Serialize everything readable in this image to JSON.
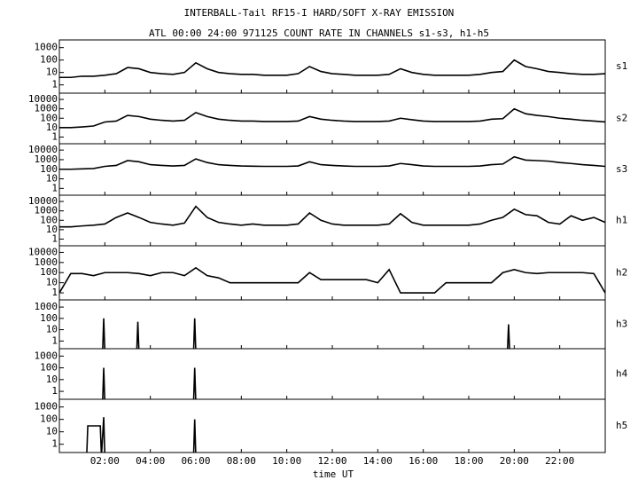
{
  "chart_data": [
    {
      "type": "line",
      "title": "INTERBALL-Tail RF15-I HARD/SOFT X-RAY EMISSION",
      "subtitle": "ATL 00:00 24:00 971125  COUNT RATE IN CHANNELS s1-s3, h1-h5",
      "log": true,
      "xlim": [
        0,
        24
      ],
      "ylim": [
        0.3,
        3000
      ],
      "yticks": [
        1000,
        100,
        10,
        1
      ],
      "x": [
        0,
        0.5,
        1,
        1.5,
        2,
        2.5,
        3,
        3.5,
        4,
        4.5,
        5,
        5.5,
        6,
        6.5,
        7,
        7.5,
        8,
        8.5,
        9,
        9.5,
        10,
        10.5,
        11,
        11.5,
        12,
        12.5,
        13,
        13.5,
        14,
        14.5,
        15,
        15.5,
        16,
        16.5,
        17,
        17.5,
        18,
        18.5,
        19,
        19.5,
        20,
        20.5,
        21,
        21.5,
        22,
        22.5,
        23,
        23.5,
        24
      ],
      "series": [
        {
          "name": "s1",
          "color": "#000000",
          "values": [
            4,
            4,
            5,
            5,
            6,
            8,
            25,
            20,
            10,
            8,
            7,
            10,
            60,
            20,
            10,
            8,
            7,
            7,
            6,
            6,
            6,
            8,
            30,
            12,
            8,
            7,
            6,
            6,
            6,
            7,
            20,
            10,
            7,
            6,
            6,
            6,
            6,
            7,
            10,
            12,
            100,
            30,
            20,
            12,
            10,
            8,
            7,
            7,
            8
          ]
        }
      ]
    },
    {
      "type": "line",
      "log": true,
      "xlim": [
        0,
        24
      ],
      "ylim": [
        0.3,
        30000
      ],
      "yticks": [
        10000,
        1000,
        100,
        10,
        1
      ],
      "x": [
        0,
        0.5,
        1,
        1.5,
        2,
        2.5,
        3,
        3.5,
        4,
        4.5,
        5,
        5.5,
        6,
        6.5,
        7,
        7.5,
        8,
        8.5,
        9,
        9.5,
        10,
        10.5,
        11,
        11.5,
        12,
        12.5,
        13,
        13.5,
        14,
        14.5,
        15,
        15.5,
        16,
        16.5,
        17,
        17.5,
        18,
        18.5,
        19,
        19.5,
        20,
        20.5,
        21,
        21.5,
        22,
        22.5,
        23,
        23.5,
        24
      ],
      "series": [
        {
          "name": "s2",
          "color": "#000000",
          "values": [
            10,
            10,
            12,
            15,
            40,
            50,
            200,
            150,
            80,
            60,
            50,
            60,
            400,
            150,
            80,
            60,
            50,
            50,
            45,
            45,
            45,
            50,
            150,
            80,
            60,
            50,
            45,
            45,
            45,
            50,
            100,
            70,
            50,
            45,
            45,
            45,
            45,
            50,
            80,
            90,
            1000,
            300,
            200,
            150,
            100,
            80,
            60,
            50,
            40
          ]
        }
      ]
    },
    {
      "type": "line",
      "log": true,
      "xlim": [
        0,
        24
      ],
      "ylim": [
        0.3,
        30000
      ],
      "yticks": [
        10000,
        1000,
        100,
        10,
        1
      ],
      "x": [
        0,
        0.5,
        1,
        1.5,
        2,
        2.5,
        3,
        3.5,
        4,
        4.5,
        5,
        5.5,
        6,
        6.5,
        7,
        7.5,
        8,
        8.5,
        9,
        9.5,
        10,
        10.5,
        11,
        11.5,
        12,
        12.5,
        13,
        13.5,
        14,
        14.5,
        15,
        15.5,
        16,
        16.5,
        17,
        17.5,
        18,
        18.5,
        19,
        19.5,
        20,
        20.5,
        21,
        21.5,
        22,
        22.5,
        23,
        23.5,
        24
      ],
      "series": [
        {
          "name": "s3",
          "color": "#000000",
          "values": [
            100,
            100,
            110,
            120,
            200,
            250,
            800,
            600,
            300,
            250,
            220,
            250,
            1200,
            500,
            300,
            250,
            220,
            210,
            200,
            200,
            200,
            220,
            600,
            300,
            250,
            220,
            200,
            200,
            200,
            220,
            400,
            300,
            220,
            200,
            200,
            200,
            200,
            220,
            300,
            350,
            2000,
            900,
            800,
            700,
            500,
            400,
            300,
            250,
            200
          ]
        }
      ]
    },
    {
      "type": "line",
      "log": true,
      "xlim": [
        0,
        24
      ],
      "ylim": [
        0.3,
        30000
      ],
      "yticks": [
        10000,
        1000,
        100,
        10,
        1
      ],
      "x": [
        0,
        0.5,
        1,
        1.5,
        2,
        2.5,
        3,
        3.5,
        4,
        4.5,
        5,
        5.5,
        6,
        6.5,
        7,
        7.5,
        8,
        8.5,
        9,
        9.5,
        10,
        10.5,
        11,
        11.5,
        12,
        12.5,
        13,
        13.5,
        14,
        14.5,
        15,
        15.5,
        16,
        16.5,
        17,
        17.5,
        18,
        18.5,
        19,
        19.5,
        20,
        20.5,
        21,
        21.5,
        22,
        22.5,
        23,
        23.5,
        24
      ],
      "series": [
        {
          "name": "h1",
          "color": "#000000",
          "values": [
            20,
            20,
            25,
            30,
            40,
            200,
            600,
            200,
            60,
            40,
            30,
            50,
            3000,
            200,
            60,
            40,
            30,
            40,
            30,
            30,
            30,
            40,
            600,
            100,
            40,
            30,
            30,
            30,
            30,
            40,
            500,
            60,
            30,
            30,
            30,
            30,
            30,
            40,
            100,
            200,
            1500,
            400,
            300,
            60,
            40,
            300,
            100,
            200,
            60
          ]
        }
      ]
    },
    {
      "type": "line",
      "log": true,
      "xlim": [
        0,
        24
      ],
      "ylim": [
        0.3,
        30000
      ],
      "yticks": [
        10000,
        1000,
        100,
        10,
        1
      ],
      "x": [
        0,
        0.5,
        1,
        1.5,
        2,
        2.5,
        3,
        3.5,
        4,
        4.5,
        5,
        5.5,
        6,
        6.5,
        7,
        7.5,
        8,
        8.5,
        9,
        9.5,
        10,
        10.5,
        11,
        11.5,
        12,
        12.5,
        13,
        13.5,
        14,
        14.5,
        15,
        15.5,
        16,
        16.5,
        17,
        17.5,
        18,
        18.5,
        19,
        19.5,
        20,
        20.5,
        21,
        21.5,
        22,
        22.5,
        23,
        23.5,
        24
      ],
      "series": [
        {
          "name": "h2",
          "color": "#000000",
          "values": [
            1,
            80,
            80,
            50,
            100,
            100,
            100,
            80,
            50,
            100,
            100,
            50,
            300,
            50,
            30,
            10,
            10,
            10,
            10,
            10,
            10,
            10,
            100,
            20,
            20,
            20,
            20,
            20,
            10,
            200,
            1,
            1,
            1,
            1,
            10,
            10,
            10,
            10,
            10,
            100,
            200,
            100,
            80,
            100,
            100,
            100,
            100,
            80,
            1
          ]
        }
      ]
    },
    {
      "type": "line",
      "log": true,
      "xlim": [
        0,
        24
      ],
      "ylim": [
        0.3,
        3000
      ],
      "yticks": [
        1000,
        100,
        10,
        1
      ],
      "x": [
        1.9,
        1.95,
        2.0,
        3.4,
        3.45,
        3.5,
        5.9,
        5.95,
        6.0,
        19.7,
        19.75,
        19.8
      ],
      "series": [
        {
          "name": "h3",
          "color": "#000000",
          "values": [
            0.1,
            100,
            0.1,
            0.1,
            50,
            0.1,
            0.1,
            100,
            0.1,
            0.1,
            30,
            0.1
          ]
        }
      ]
    },
    {
      "type": "line",
      "log": true,
      "xlim": [
        0,
        24
      ],
      "ylim": [
        0.3,
        3000
      ],
      "yticks": [
        1000,
        100,
        10,
        1
      ],
      "x": [
        1.9,
        1.95,
        2.0,
        5.9,
        5.95,
        6.0
      ],
      "series": [
        {
          "name": "h4",
          "color": "#000000",
          "values": [
            0.1,
            100,
            0.1,
            0.1,
            100,
            0.1
          ]
        }
      ]
    },
    {
      "type": "line",
      "log": true,
      "xlim": [
        0,
        24
      ],
      "ylim": [
        0.3,
        3000
      ],
      "yticks": [
        1000,
        100,
        10,
        1
      ],
      "x": [
        1.2,
        1.25,
        1.8,
        1.85,
        1.95,
        2.0,
        5.9,
        5.95,
        6.0
      ],
      "series": [
        {
          "name": "h5",
          "color": "#000000",
          "values": [
            0.1,
            30,
            30,
            0.1,
            150,
            0.1,
            0.1,
            100,
            0.1
          ]
        }
      ],
      "xlabel": "time UT",
      "xticks": [
        {
          "value": 2,
          "label": "02:00"
        },
        {
          "value": 4,
          "label": "04:00"
        },
        {
          "value": 6,
          "label": "06:00"
        },
        {
          "value": 8,
          "label": "08:00"
        },
        {
          "value": 10,
          "label": "10:00"
        },
        {
          "value": 12,
          "label": "12:00"
        },
        {
          "value": 14,
          "label": "14:00"
        },
        {
          "value": 16,
          "label": "16:00"
        },
        {
          "value": 18,
          "label": "18:00"
        },
        {
          "value": 20,
          "label": "20:00"
        },
        {
          "value": 22,
          "label": "22:00"
        }
      ]
    }
  ]
}
